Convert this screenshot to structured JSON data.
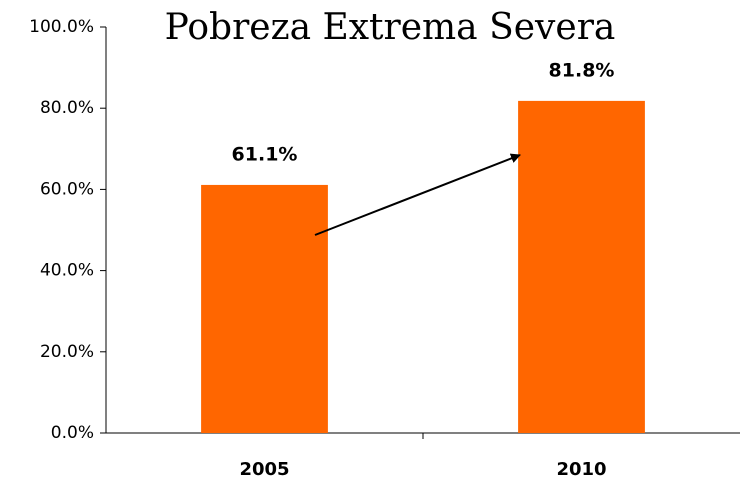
{
  "chart_data": {
    "type": "bar",
    "title": "Pobreza Extrema Severa",
    "categories": [
      "2005",
      "2010"
    ],
    "values": [
      61.1,
      81.8
    ],
    "value_labels": [
      "61.1%",
      "81.8%"
    ],
    "color": "#ff6600",
    "ylim": [
      0,
      100
    ],
    "yticks": [
      {
        "value": 0,
        "label": "0.0%"
      },
      {
        "value": 20,
        "label": "20.0%"
      },
      {
        "value": 40,
        "label": "40.0%"
      },
      {
        "value": 60,
        "label": "60.0%"
      },
      {
        "value": 80,
        "label": "80.0%"
      },
      {
        "value": 100,
        "label": "100.0%"
      }
    ],
    "grid": false
  }
}
